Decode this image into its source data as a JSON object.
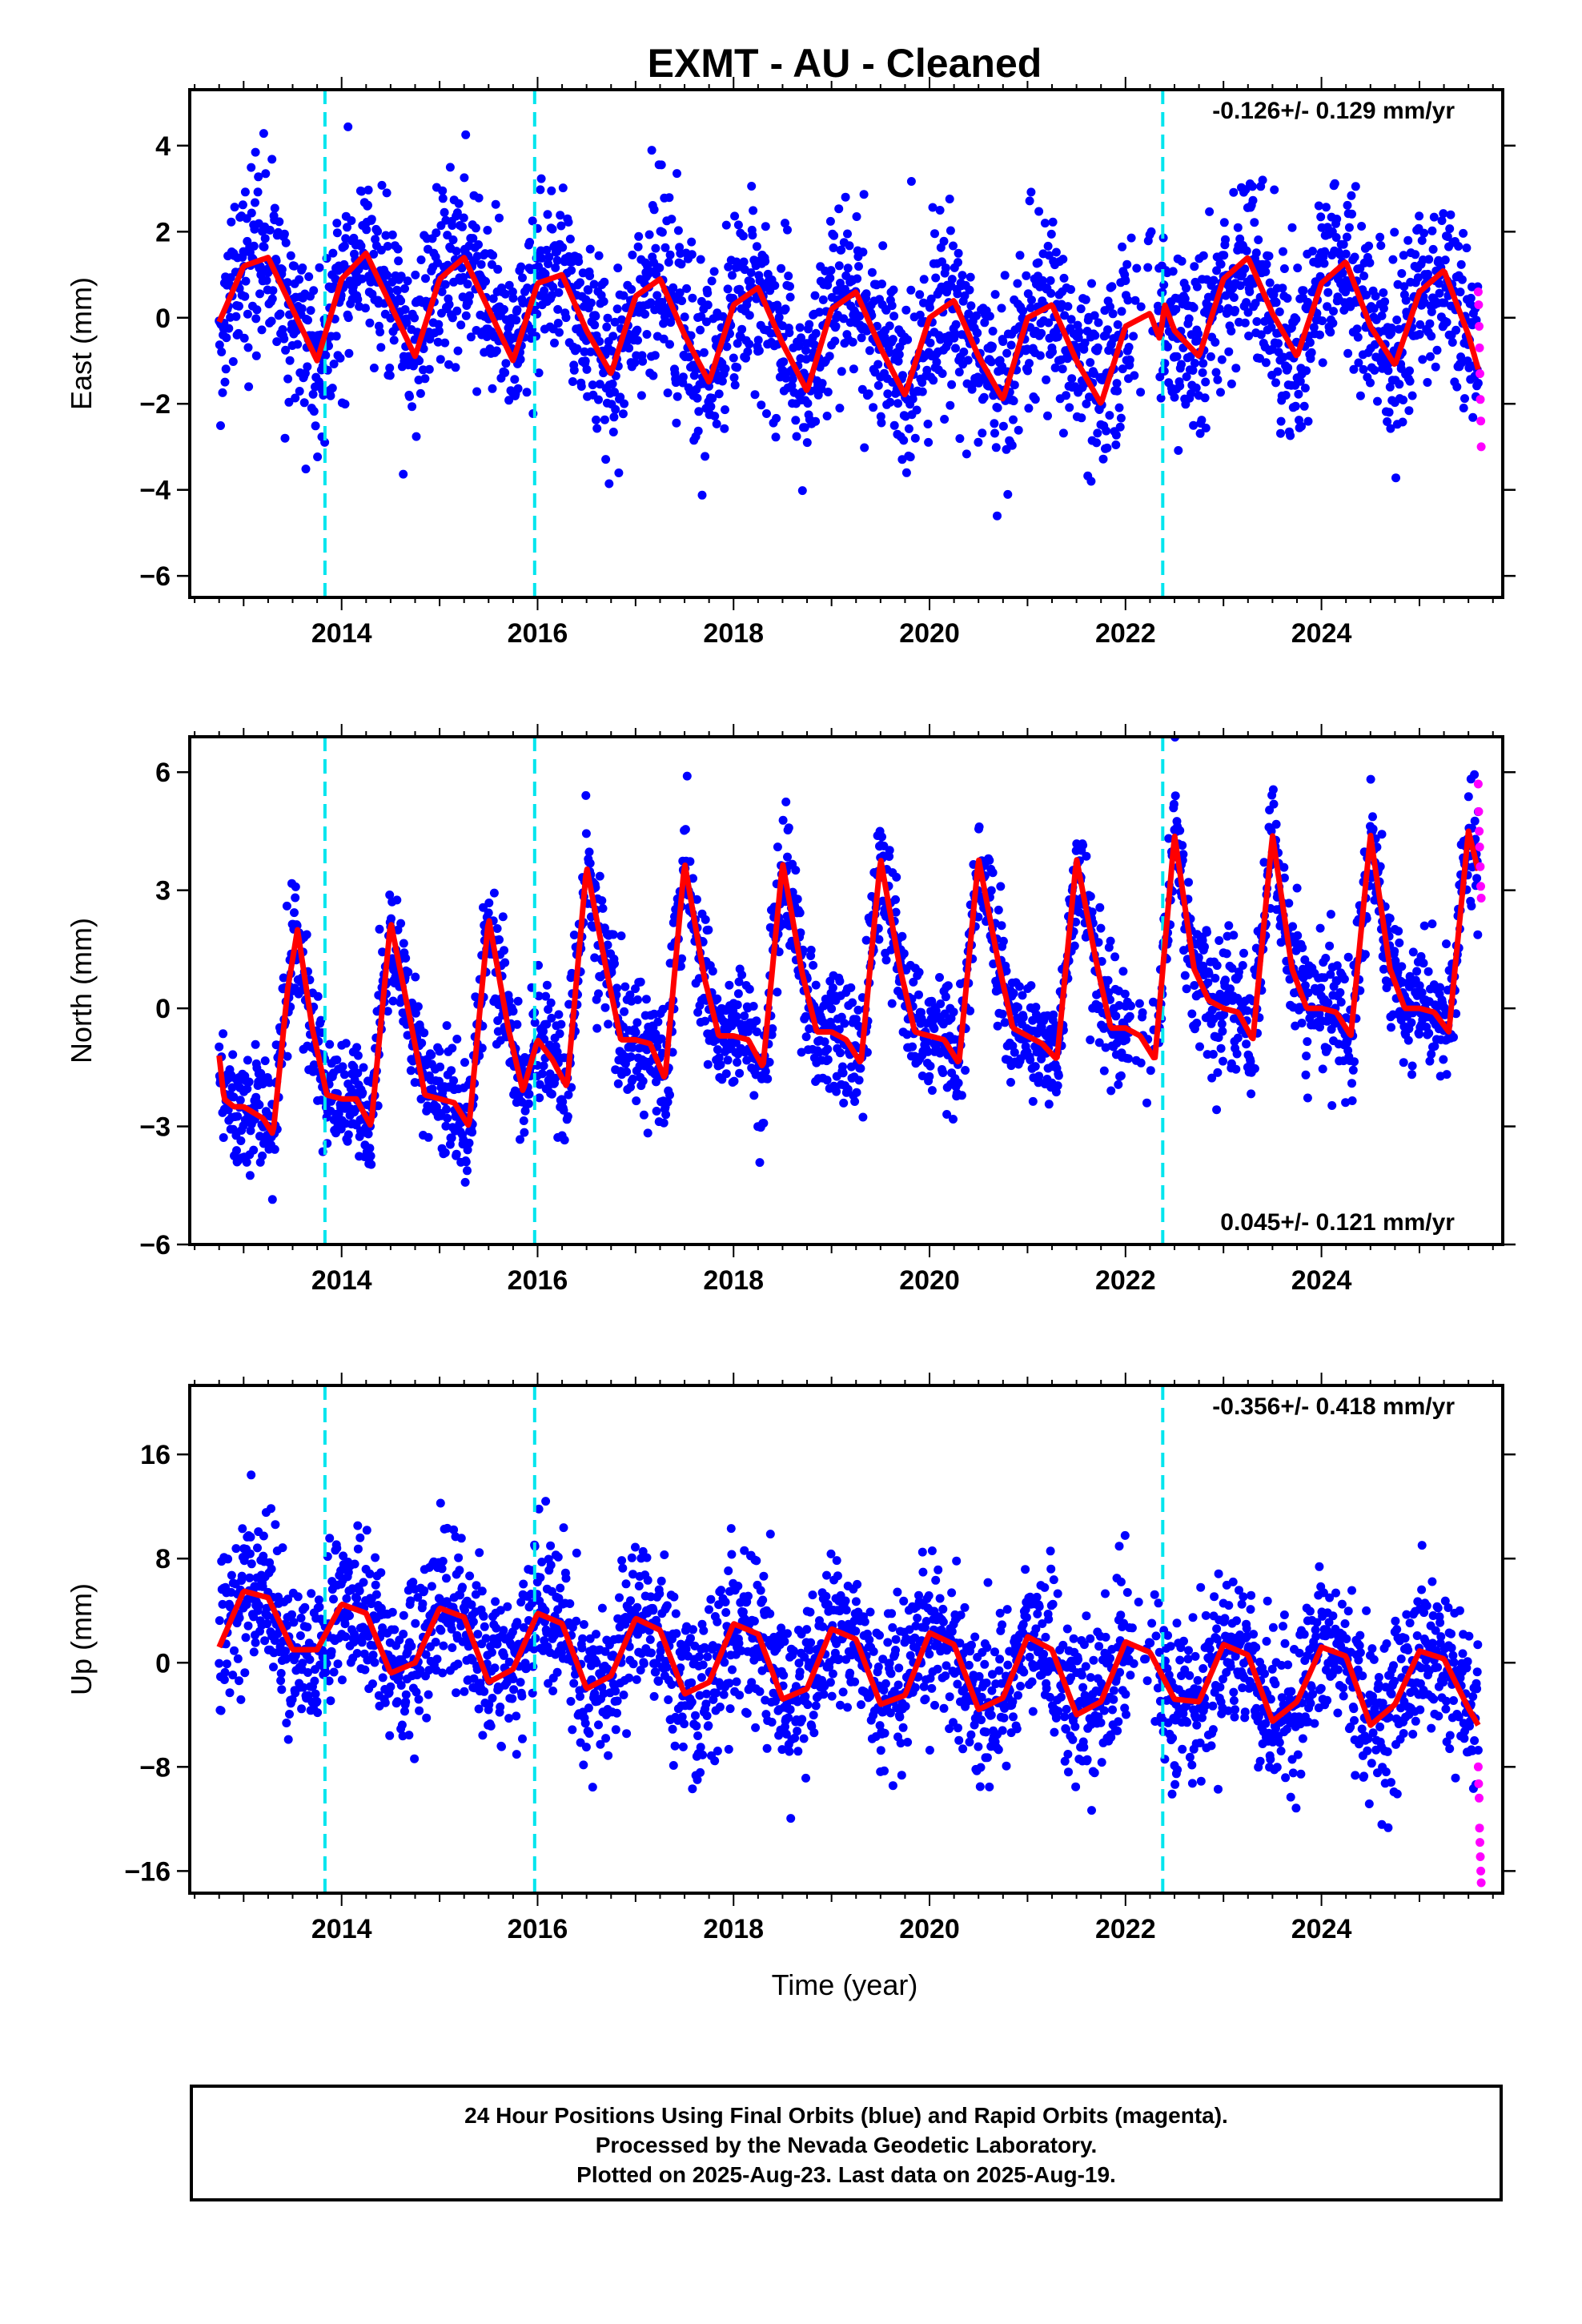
{
  "title": "EXMT  - AU - Cleaned",
  "x_label": "Time (year)",
  "x_ticks": [
    "2014",
    "2016",
    "2018",
    "2020",
    "2022",
    "2024"
  ],
  "caption": {
    "line1": "24 Hour Positions Using Final Orbits (blue) and Rapid Orbits (magenta).",
    "line2": "Processed by the Nevada Geodetic Laboratory.",
    "line3": "Plotted on 2025-Aug-23. Last data on 2025-Aug-19."
  },
  "colors": {
    "final_points": "#0000ff",
    "rapid_points": "#ff00ff",
    "model": "#ff0000",
    "equipment_change": "#00e5ee"
  },
  "chart_data": [
    {
      "type": "scatter",
      "panel": "east",
      "ylabel": "East (mm)",
      "rate_text": "-0.126+/- 0.129 mm/yr",
      "rate_position": "top-right",
      "xlim": [
        2012.45,
        2025.85
      ],
      "ylim": [
        -6.5,
        5.3
      ],
      "y_ticks": [
        4,
        2,
        0,
        -2,
        -4,
        -6
      ],
      "y_tick_labels": [
        "4",
        "2",
        "0",
        "−2",
        "−4",
        "−6"
      ],
      "equipment_change_years": [
        2013.83,
        2015.97,
        2022.38
      ],
      "series": [
        {
          "role": "final_orbits",
          "x_range": [
            2012.75,
            2025.6
          ],
          "noise_sd": 1.05
        },
        {
          "role": "rapid_orbits",
          "x_range": [
            2025.6,
            2025.63
          ],
          "values": [
            0.6,
            0.3,
            -0.2,
            -0.7,
            -1.3,
            -1.9,
            -2.4,
            -3.0
          ]
        },
        {
          "role": "model_fit",
          "x": [
            2012.75,
            2013.0,
            2013.25,
            2013.5,
            2013.75,
            2014.0,
            2014.25,
            2014.5,
            2014.75,
            2015.0,
            2015.25,
            2015.5,
            2015.75,
            2016.0,
            2016.25,
            2016.5,
            2016.75,
            2017.0,
            2017.25,
            2017.5,
            2017.75,
            2018.0,
            2018.25,
            2018.5,
            2018.75,
            2019.0,
            2019.25,
            2019.5,
            2019.75,
            2020.0,
            2020.25,
            2020.5,
            2020.75,
            2021.0,
            2021.25,
            2021.5,
            2021.75,
            2022.0,
            2022.25,
            2022.35,
            2022.4,
            2022.5,
            2022.75,
            2023.0,
            2023.25,
            2023.5,
            2023.75,
            2024.0,
            2024.25,
            2024.5,
            2024.75,
            2025.0,
            2025.25,
            2025.5,
            2025.6
          ],
          "values": [
            -0.1,
            1.2,
            1.4,
            0.2,
            -1.0,
            0.9,
            1.5,
            0.3,
            -0.9,
            0.9,
            1.4,
            0.2,
            -1.0,
            0.8,
            1.0,
            -0.3,
            -1.3,
            0.5,
            0.9,
            -0.4,
            -1.5,
            0.3,
            0.7,
            -0.6,
            -1.7,
            0.2,
            0.6,
            -0.7,
            -1.8,
            0.0,
            0.4,
            -0.9,
            -1.9,
            0.0,
            0.3,
            -1.0,
            -2.0,
            -0.2,
            0.1,
            -0.5,
            0.3,
            -0.3,
            -0.9,
            0.9,
            1.4,
            0.1,
            -0.9,
            0.8,
            1.3,
            -0.2,
            -1.1,
            0.6,
            1.1,
            -0.4,
            -1.2
          ]
        }
      ]
    },
    {
      "type": "scatter",
      "panel": "north",
      "ylabel": "North (mm)",
      "rate_text": "0.045+/- 0.121 mm/yr",
      "rate_position": "bottom-right",
      "xlim": [
        2012.45,
        2025.85
      ],
      "ylim": [
        -6.0,
        6.9
      ],
      "y_ticks": [
        6,
        3,
        0,
        -3,
        -6
      ],
      "y_tick_labels": [
        "6",
        "3",
        "0",
        "−3",
        "−6"
      ],
      "equipment_change_years": [
        2013.83,
        2015.97,
        2022.38
      ],
      "series": [
        {
          "role": "final_orbits",
          "x_range": [
            2012.75,
            2025.6
          ],
          "noise_sd": 0.8
        },
        {
          "role": "rapid_orbits",
          "x_range": [
            2025.6,
            2025.63
          ],
          "values": [
            5.7,
            5.0,
            4.5,
            4.1,
            3.6,
            3.1,
            2.8
          ]
        },
        {
          "role": "model_fit",
          "x": [
            2012.75,
            2012.8,
            2012.9,
            2013.0,
            2013.2,
            2013.3,
            2013.45,
            2013.55,
            2013.7,
            2013.85,
            2014.0,
            2014.15,
            2014.3,
            2014.5,
            2014.7,
            2014.85,
            2015.0,
            2015.15,
            2015.3,
            2015.5,
            2015.7,
            2015.85,
            2016.0,
            2016.15,
            2016.3,
            2016.5,
            2016.7,
            2016.85,
            2017.0,
            2017.15,
            2017.3,
            2017.5,
            2017.7,
            2017.85,
            2018.0,
            2018.15,
            2018.3,
            2018.5,
            2018.7,
            2018.85,
            2019.0,
            2019.15,
            2019.3,
            2019.5,
            2019.7,
            2019.85,
            2020.0,
            2020.15,
            2020.3,
            2020.5,
            2020.7,
            2020.85,
            2021.0,
            2021.15,
            2021.3,
            2021.5,
            2021.7,
            2021.85,
            2022.0,
            2022.15,
            2022.3,
            2022.5,
            2022.7,
            2022.85,
            2023.0,
            2023.15,
            2023.3,
            2023.5,
            2023.7,
            2023.85,
            2024.0,
            2024.15,
            2024.3,
            2024.5,
            2024.7,
            2024.85,
            2025.0,
            2025.15,
            2025.3,
            2025.5,
            2025.6
          ],
          "values": [
            -1.2,
            -2.3,
            -2.5,
            -2.5,
            -2.8,
            -3.2,
            0.5,
            2.0,
            -0.5,
            -2.2,
            -2.3,
            -2.3,
            -3.0,
            2.2,
            -0.3,
            -2.2,
            -2.3,
            -2.4,
            -3.0,
            2.3,
            -0.5,
            -2.1,
            -0.8,
            -1.3,
            -2.0,
            3.6,
            1.0,
            -0.8,
            -0.8,
            -0.9,
            -1.8,
            3.7,
            0.8,
            -0.7,
            -0.7,
            -0.8,
            -1.5,
            3.7,
            0.9,
            -0.6,
            -0.6,
            -0.8,
            -1.4,
            3.8,
            1.0,
            -0.6,
            -0.7,
            -0.8,
            -1.4,
            3.8,
            1.2,
            -0.5,
            -0.7,
            -0.9,
            -1.3,
            3.8,
            1.2,
            -0.5,
            -0.5,
            -0.7,
            -1.3,
            4.4,
            1.0,
            0.2,
            0.0,
            -0.1,
            -0.8,
            4.4,
            1.0,
            0.0,
            0.0,
            -0.1,
            -0.7,
            4.4,
            1.0,
            0.0,
            0.0,
            -0.1,
            -0.6,
            4.5,
            3.5
          ]
        }
      ]
    },
    {
      "type": "scatter",
      "panel": "up",
      "ylabel": "Up (mm)",
      "rate_text": "-0.356+/- 0.418 mm/yr",
      "rate_position": "top-right",
      "xlim": [
        2012.45,
        2025.85
      ],
      "ylim": [
        -17.7,
        21.3
      ],
      "y_ticks": [
        16,
        8,
        0,
        -8,
        -16
      ],
      "y_tick_labels": [
        "16",
        "8",
        "0",
        "−8",
        "−16"
      ],
      "equipment_change_years": [
        2013.83,
        2015.97,
        2022.38
      ],
      "series": [
        {
          "role": "final_orbits",
          "x_range": [
            2012.75,
            2025.6
          ],
          "noise_sd": 3.0
        },
        {
          "role": "rapid_orbits",
          "x_range": [
            2025.6,
            2025.63
          ],
          "values": [
            -8.0,
            -9.3,
            -10.4,
            -12.7,
            -13.8,
            -14.9,
            -16.0,
            -16.9
          ]
        },
        {
          "role": "model_fit",
          "x": [
            2012.75,
            2013.0,
            2013.25,
            2013.5,
            2013.75,
            2014.0,
            2014.25,
            2014.5,
            2014.75,
            2015.0,
            2015.25,
            2015.5,
            2015.75,
            2016.0,
            2016.25,
            2016.5,
            2016.75,
            2017.0,
            2017.25,
            2017.5,
            2017.75,
            2018.0,
            2018.25,
            2018.5,
            2018.75,
            2019.0,
            2019.25,
            2019.5,
            2019.75,
            2020.0,
            2020.25,
            2020.5,
            2020.75,
            2021.0,
            2021.25,
            2021.5,
            2021.75,
            2022.0,
            2022.25,
            2022.5,
            2022.75,
            2023.0,
            2023.25,
            2023.5,
            2023.75,
            2024.0,
            2024.25,
            2024.5,
            2024.75,
            2025.0,
            2025.25,
            2025.5,
            2025.6
          ],
          "values": [
            1.2,
            5.5,
            5.0,
            1.0,
            1.0,
            4.5,
            3.8,
            -0.8,
            0.0,
            4.2,
            3.5,
            -1.5,
            -0.5,
            3.8,
            3.0,
            -2.0,
            -1.0,
            3.4,
            2.5,
            -2.4,
            -1.5,
            3.0,
            2.2,
            -2.8,
            -2.0,
            2.6,
            1.8,
            -3.2,
            -2.5,
            2.3,
            1.4,
            -3.6,
            -2.7,
            2.0,
            1.0,
            -4.0,
            -3.0,
            1.6,
            0.8,
            -2.8,
            -3.0,
            1.4,
            0.6,
            -4.5,
            -3.0,
            1.2,
            0.5,
            -4.8,
            -3.2,
            0.9,
            0.3,
            -3.5,
            -4.8
          ]
        }
      ]
    }
  ]
}
